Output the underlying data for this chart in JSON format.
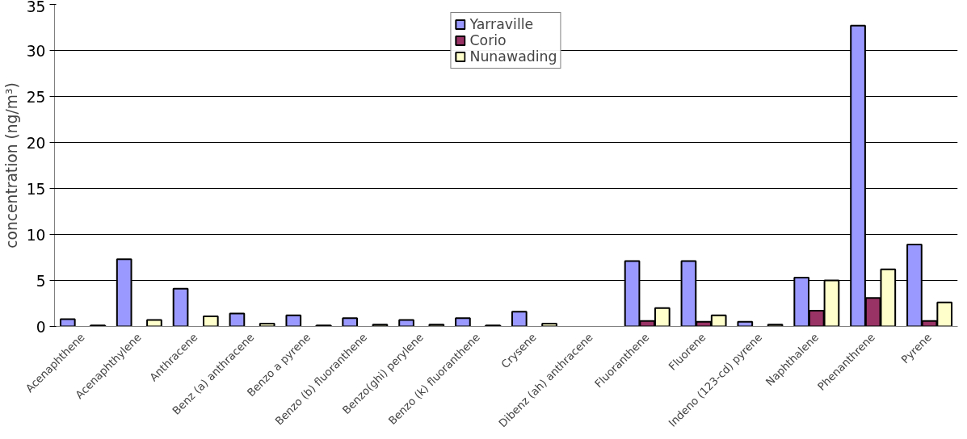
{
  "chart_data": {
    "type": "bar",
    "ylabel": "concentration (ng/m³)",
    "categories": [
      "Acenaphthene",
      "Acenaphthylene",
      "Anthracene",
      "Benz (a) anthracene",
      "Benzo a pyrene",
      "Benzo (b) fluoranthene",
      "Benzo(ghi) perylene",
      "Benzo (k) fluoranthene",
      "Crysene",
      "Dibenz (ah) anthracene",
      "Fluoranthene",
      "Fluorene",
      "Indeno (123-cd) pyrene",
      "Naphthalene",
      "Phenanthrene",
      "Pyrene"
    ],
    "series": [
      {
        "name": "Yarraville",
        "color": "#9999ff",
        "values": [
          0.8,
          7.3,
          4.1,
          1.4,
          1.2,
          0.9,
          0.7,
          0.9,
          1.6,
          null,
          7.1,
          7.1,
          0.5,
          5.3,
          32.7,
          8.9
        ]
      },
      {
        "name": "Corio",
        "color": "#993366",
        "values": [
          null,
          null,
          null,
          null,
          null,
          null,
          null,
          null,
          null,
          null,
          0.6,
          0.5,
          null,
          1.7,
          3.1,
          0.6
        ]
      },
      {
        "name": "Nunawading",
        "color": "#ffffcc",
        "values": [
          0.1,
          0.7,
          1.1,
          0.3,
          0.1,
          0.2,
          0.2,
          0.1,
          0.3,
          null,
          2.0,
          1.2,
          0.2,
          5.0,
          6.2,
          2.6
        ]
      }
    ],
    "ylim": [
      0,
      35
    ],
    "yticks": [
      0,
      5,
      10,
      15,
      20,
      25,
      30,
      35
    ],
    "grid": "y",
    "legend": "top"
  }
}
